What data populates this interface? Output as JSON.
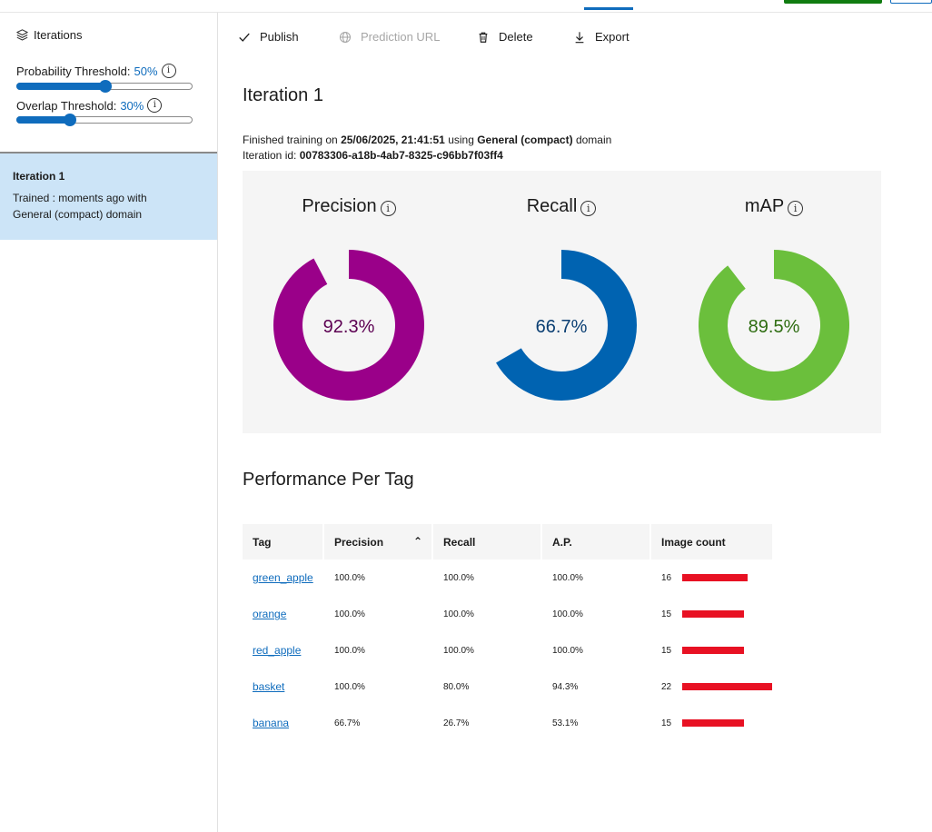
{
  "colors": {
    "accent": "#0f6cbd",
    "precision": "#9a0089",
    "recall": "#0063b1",
    "map": "#6bbf3c",
    "precision_text": "#5c0052",
    "recall_text": "#0b3f73",
    "map_text": "#2f6d12",
    "bar": "#e81123",
    "selected_bg": "#cce4f7"
  },
  "sidebar": {
    "header": "Iterations",
    "probability": {
      "label": "Probability Threshold:",
      "value": "50%",
      "fraction": 0.5
    },
    "overlap": {
      "label": "Overlap Threshold:",
      "value": "30%",
      "fraction": 0.3
    },
    "iteration": {
      "name": "Iteration 1",
      "description": "Trained : moments ago with General (compact) domain"
    }
  },
  "toolbar": {
    "publish": "Publish",
    "prediction_url": "Prediction URL",
    "delete": "Delete",
    "export": "Export"
  },
  "main": {
    "title": "Iteration 1",
    "meta": {
      "finished_prefix": "Finished training on",
      "date": "25/06/2025, 21:41:51",
      "using": "using",
      "domain": "General (compact)",
      "domain_suffix": "domain",
      "id_label": "Iteration id:",
      "id": "00783306-a18b-4ab7-8325-c96bb7f03ff4"
    },
    "metrics": [
      {
        "label": "Precision",
        "value": "92.3%",
        "fraction": 0.923
      },
      {
        "label": "Recall",
        "value": "66.7%",
        "fraction": 0.667
      },
      {
        "label": "mAP",
        "value": "89.5%",
        "fraction": 0.895
      }
    ],
    "performance_title": "Performance Per Tag"
  },
  "table": {
    "headers": {
      "tag": "Tag",
      "precision": "Precision",
      "recall": "Recall",
      "ap": "A.P.",
      "image_count": "Image count"
    },
    "max_count": 22,
    "rows": [
      {
        "tag": "green_apple",
        "precision": "100.0%",
        "recall": "100.0%",
        "ap": "100.0%",
        "count": 16
      },
      {
        "tag": "orange",
        "precision": "100.0%",
        "recall": "100.0%",
        "ap": "100.0%",
        "count": 15
      },
      {
        "tag": "red_apple",
        "precision": "100.0%",
        "recall": "100.0%",
        "ap": "100.0%",
        "count": 15
      },
      {
        "tag": "basket",
        "precision": "100.0%",
        "recall": "80.0%",
        "ap": "94.3%",
        "count": 22
      },
      {
        "tag": "banana",
        "precision": "66.7%",
        "recall": "26.7%",
        "ap": "53.1%",
        "count": 15
      }
    ]
  }
}
